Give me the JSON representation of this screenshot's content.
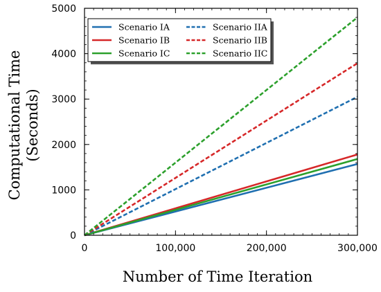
{
  "chart_data": {
    "type": "line",
    "title": "",
    "xlabel": "Number of Time Iteration",
    "ylabel": "Computational Time\n(Seconds)",
    "xlim": [
      0,
      300000
    ],
    "ylim": [
      0,
      5000
    ],
    "x_ticks": [
      0,
      100000,
      200000,
      300000
    ],
    "x_tick_labels": [
      "0",
      "100,000",
      "200,000",
      "300,000"
    ],
    "y_ticks": [
      0,
      1000,
      2000,
      3000,
      4000,
      5000
    ],
    "y_tick_labels": [
      "0",
      "1000",
      "2000",
      "3000",
      "4000",
      "5000"
    ],
    "grid": false,
    "legend_placement": "top-left",
    "series": [
      {
        "name": "Scenario IA",
        "color": "#1f6fb0",
        "style": "solid",
        "x": [
          0,
          300000
        ],
        "y": [
          0,
          1570
        ]
      },
      {
        "name": "Scenario IB",
        "color": "#d62728",
        "style": "solid",
        "x": [
          0,
          300000
        ],
        "y": [
          0,
          1780
        ]
      },
      {
        "name": "Scenario IC",
        "color": "#2ca02c",
        "style": "solid",
        "x": [
          0,
          300000
        ],
        "y": [
          0,
          1680
        ]
      },
      {
        "name": "Scenario IIA",
        "color": "#1f6fb0",
        "style": "dashed",
        "x": [
          0,
          300000
        ],
        "y": [
          0,
          3050
        ]
      },
      {
        "name": "Scenario IIB",
        "color": "#d62728",
        "style": "dashed",
        "x": [
          0,
          300000
        ],
        "y": [
          0,
          3790
        ]
      },
      {
        "name": "Scenario IIC",
        "color": "#2ca02c",
        "style": "dashed",
        "x": [
          0,
          300000
        ],
        "y": [
          0,
          4800
        ]
      }
    ]
  }
}
